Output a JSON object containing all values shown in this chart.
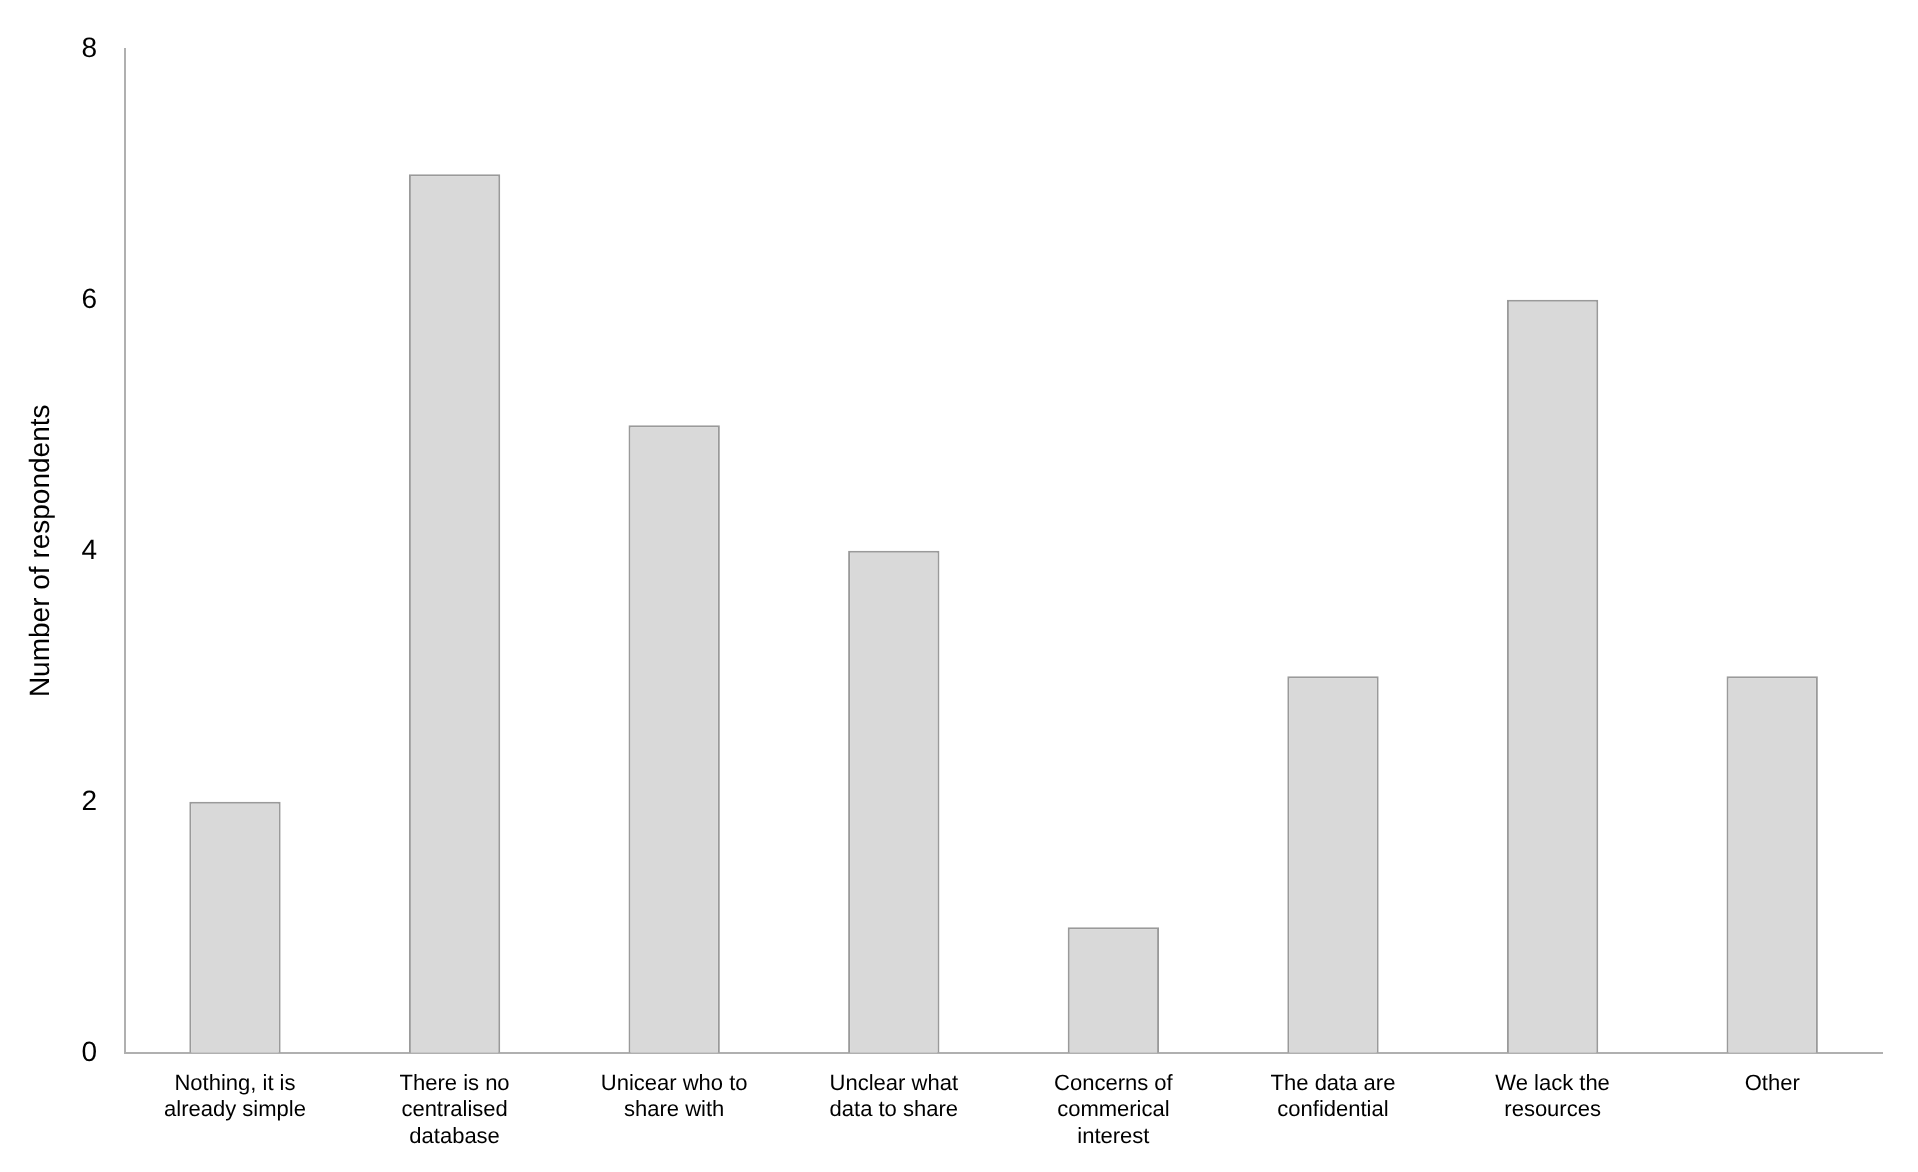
{
  "chart_data": {
    "type": "bar",
    "ylabel": "Number of respondents",
    "categories": [
      "Nothing, it is already simple",
      "There is no centralised database",
      "Unicear who to share with",
      "Unclear what data to share",
      "Concerns of commerical interest",
      "The data are confidential",
      "We lack the resources",
      "Other"
    ],
    "values": [
      2,
      7,
      5,
      4,
      1,
      3,
      6,
      3
    ],
    "color": "#d9d9d9",
    "ylim": [
      0,
      8
    ],
    "yticks": [
      0,
      2,
      4,
      6,
      8
    ],
    "grid": false,
    "legend": false
  }
}
